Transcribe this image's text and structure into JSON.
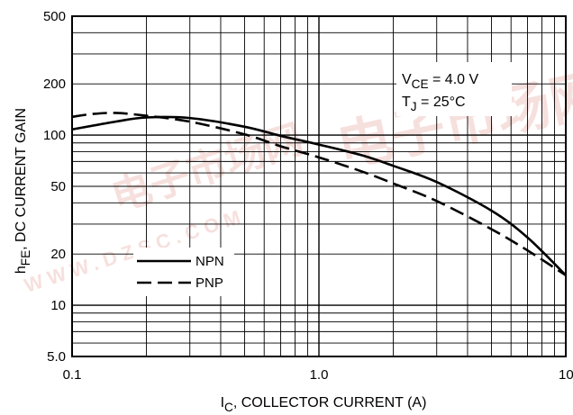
{
  "chart_data": {
    "type": "line",
    "xscale": "log",
    "yscale": "log",
    "xlim": [
      0.1,
      10
    ],
    "ylim": [
      5,
      500
    ],
    "grid": true,
    "xlabel": {
      "main": "I",
      "sub": "C",
      "rest": ", COLLECTOR CURRENT (A)"
    },
    "ylabel": {
      "main": "h",
      "sub": "FE",
      "rest": ", DC CURRENT GAIN"
    },
    "xticks": [
      {
        "value": 0.1,
        "label": "0.1"
      },
      {
        "value": 1,
        "label": "1.0"
      },
      {
        "value": 10,
        "label": "10"
      }
    ],
    "yticks": [
      {
        "value": 5,
        "label": "5.0"
      },
      {
        "value": 10,
        "label": "10"
      },
      {
        "value": 20,
        "label": "20"
      },
      {
        "value": 50,
        "label": "50"
      },
      {
        "value": 100,
        "label": "100"
      },
      {
        "value": 200,
        "label": "200"
      },
      {
        "value": 500,
        "label": "500"
      }
    ],
    "annotations": [
      {
        "main": "V",
        "sub": "CE",
        "rest": " = 4.0 V"
      },
      {
        "main": "T",
        "sub": "J",
        "rest": " = 25°C"
      }
    ],
    "legend_position": "bottom-left",
    "series": [
      {
        "name": "NPN",
        "style": "solid",
        "x": [
          0.1,
          0.15,
          0.2,
          0.3,
          0.5,
          0.7,
          1.0,
          1.5,
          2.0,
          3.0,
          5.0,
          7.0,
          10.0
        ],
        "y": [
          108,
          120,
          127,
          126,
          112,
          99,
          88,
          76,
          66,
          53,
          36,
          25,
          15
        ]
      },
      {
        "name": "PNP",
        "style": "dashed",
        "x": [
          0.1,
          0.12,
          0.15,
          0.2,
          0.3,
          0.5,
          0.7,
          1.0,
          1.5,
          2.0,
          3.0,
          5.0,
          7.0,
          10.0
        ],
        "y": [
          128,
          133,
          135,
          130,
          120,
          101,
          86,
          74,
          61,
          52,
          41,
          28,
          21,
          15
        ]
      }
    ],
    "watermark": [
      "电子市场网",
      "WWW.DZSC.COM"
    ]
  }
}
